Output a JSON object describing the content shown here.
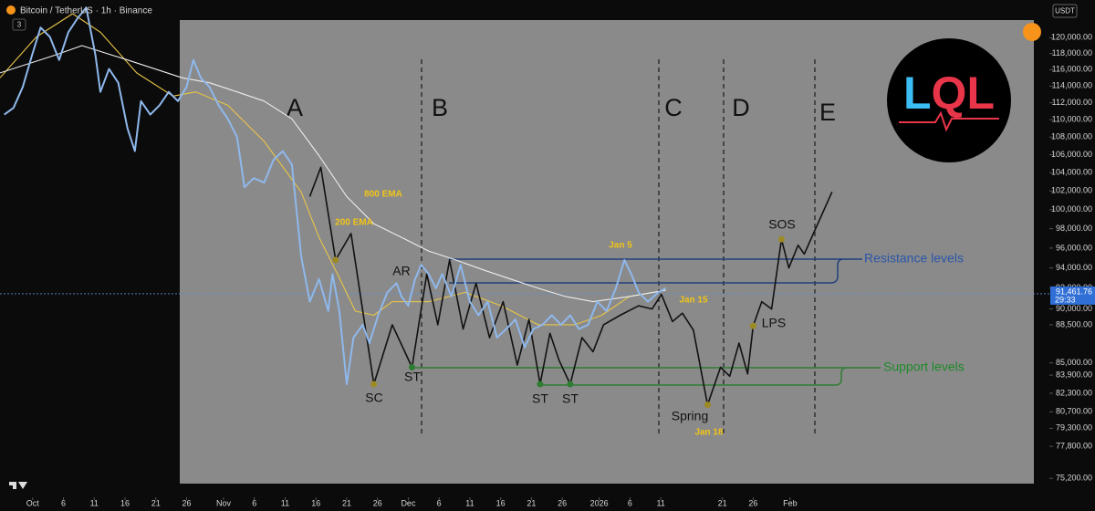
{
  "chart_data": {
    "type": "line",
    "title": "Bitcoin / TetherUS · 1h · Binance",
    "indicator_count": 3,
    "currency": "USDT",
    "log_scale": true,
    "grid": false,
    "xlim": [
      -5.3,
      165.1
    ],
    "ylim": [
      73700,
      124900
    ],
    "xticks": [
      {
        "value": 0,
        "label": "Oct"
      },
      {
        "value": 5,
        "label": "6"
      },
      {
        "value": 10,
        "label": "11"
      },
      {
        "value": 15,
        "label": "16"
      },
      {
        "value": 20,
        "label": "21"
      },
      {
        "value": 25,
        "label": "26"
      },
      {
        "value": 31,
        "label": "Nov"
      },
      {
        "value": 36,
        "label": "6"
      },
      {
        "value": 41,
        "label": "11"
      },
      {
        "value": 46,
        "label": "16"
      },
      {
        "value": 51,
        "label": "21"
      },
      {
        "value": 56,
        "label": "26"
      },
      {
        "value": 61,
        "label": "Dec"
      },
      {
        "value": 66,
        "label": "6"
      },
      {
        "value": 71,
        "label": "11"
      },
      {
        "value": 76,
        "label": "16"
      },
      {
        "value": 81,
        "label": "21"
      },
      {
        "value": 86,
        "label": "26"
      },
      {
        "value": 92,
        "label": "2026"
      },
      {
        "value": 97,
        "label": "6"
      },
      {
        "value": 102,
        "label": "11"
      },
      {
        "value": 112,
        "label": "21"
      },
      {
        "value": 117,
        "label": "26"
      },
      {
        "value": 123,
        "label": "Feb"
      }
    ],
    "yticks": [
      {
        "value": 120000,
        "label": "120,000.00"
      },
      {
        "value": 118000,
        "label": "118,000.00"
      },
      {
        "value": 116000,
        "label": "116,000.00"
      },
      {
        "value": 114000,
        "label": "114,000.00"
      },
      {
        "value": 112000,
        "label": "112,000.00"
      },
      {
        "value": 110000,
        "label": "110,000.00"
      },
      {
        "value": 108000,
        "label": "108,000.00"
      },
      {
        "value": 106000,
        "label": "106,000.00"
      },
      {
        "value": 104000,
        "label": "104,000.00"
      },
      {
        "value": 102000,
        "label": "102,000.00"
      },
      {
        "value": 100000,
        "label": "100,000.00"
      },
      {
        "value": 98000,
        "label": "98,000.00"
      },
      {
        "value": 96000,
        "label": "96,000.00"
      },
      {
        "value": 94000,
        "label": "94,000.00"
      },
      {
        "value": 92000,
        "label": "92,000.00"
      },
      {
        "value": 90000,
        "label": "90,000.00"
      },
      {
        "value": 88500,
        "label": "88,500.00"
      },
      {
        "value": 85000,
        "label": "85,000.00"
      },
      {
        "value": 83900,
        "label": "83,900.00"
      },
      {
        "value": 82300,
        "label": "82,300.00"
      },
      {
        "value": 80700,
        "label": "80,700.00"
      },
      {
        "value": 79300,
        "label": "79,300.00"
      },
      {
        "value": 77800,
        "label": "77,800.00"
      },
      {
        "value": 75200,
        "label": "75,200.00"
      }
    ],
    "series": [
      {
        "color": "#8fb8ec",
        "x": [
          -4.6,
          -3.1,
          -1.6,
          -0.1,
          1.3,
          2.8,
          4.3,
          5.8,
          7.3,
          8.7,
          10.2,
          11.0,
          12.4,
          13.9,
          15.4,
          16.6,
          17.6,
          19.1,
          20.6,
          22.1,
          23.6,
          25.0,
          26.1,
          27.3,
          28.7,
          30.2,
          31.7,
          33.2,
          34.4,
          35.9,
          37.6,
          39.1,
          40.6,
          42.1,
          43.6,
          45.0,
          46.5,
          48.0,
          48.7,
          49.8,
          51.0,
          52.1,
          53.6,
          54.7,
          56.1,
          57.6,
          59.1,
          59.9,
          61.0,
          62.1,
          63.1,
          64.3,
          65.5,
          66.5,
          68.0,
          69.5,
          71.0,
          72.4,
          73.9,
          75.4,
          76.9,
          78.4,
          79.9,
          81.3,
          82.8,
          84.3,
          85.8,
          87.3,
          88.7,
          90.2,
          91.7,
          93.2,
          94.7,
          96.1,
          97.2,
          98.4,
          99.9,
          101.6,
          102.8
        ],
        "values": [
          110600,
          111400,
          113900,
          117800,
          121300,
          120100,
          117200,
          120700,
          122500,
          123900,
          117800,
          113300,
          116100,
          114400,
          109000,
          106400,
          112200,
          110600,
          111700,
          113300,
          112200,
          113900,
          117200,
          115000,
          113900,
          111700,
          110100,
          108000,
          102400,
          103400,
          102900,
          105400,
          106400,
          104900,
          95200,
          90700,
          92900,
          89800,
          93400,
          89800,
          83100,
          87300,
          88500,
          86800,
          89400,
          91600,
          92500,
          91200,
          90300,
          92900,
          94300,
          93400,
          92000,
          93400,
          91200,
          94300,
          90700,
          89400,
          90700,
          87300,
          88100,
          89000,
          86400,
          88100,
          88500,
          89400,
          88500,
          89400,
          88100,
          88500,
          90700,
          89800,
          92000,
          94800,
          93400,
          91600,
          90700,
          91600,
          92000
        ]
      },
      {
        "name": "200 EMA",
        "color": "#e8c547",
        "x": [
          -5.3,
          0.6,
          6.5,
          11.0,
          16.9,
          22.8,
          26.5,
          31.7,
          37.6,
          43.6,
          46.5,
          49.5,
          52.4,
          55.4,
          58.4,
          64.3,
          70.2,
          76.1,
          82.1,
          88.0,
          92.4,
          96.9,
          102.8
        ],
        "values": [
          115000,
          120100,
          123100,
          120700,
          115600,
          112800,
          113300,
          111700,
          107500,
          101900,
          97100,
          93400,
          89800,
          89400,
          90700,
          90700,
          91600,
          90300,
          88500,
          88500,
          89400,
          91200,
          91800
        ]
      },
      {
        "name": "800 EMA",
        "color": "#ececec",
        "x": [
          -5.3,
          3.6,
          8.0,
          15.4,
          24.3,
          28.7,
          33.2,
          37.6,
          42.1,
          46.5,
          51.0,
          55.4,
          59.9,
          64.3,
          68.7,
          73.2,
          77.6,
          82.1,
          86.5,
          91.0,
          96.9,
          102.8
        ],
        "values": [
          115600,
          117800,
          119000,
          117200,
          115000,
          114400,
          113300,
          112200,
          110100,
          105900,
          101400,
          98500,
          97100,
          95700,
          94800,
          93800,
          92900,
          92000,
          91200,
          90700,
          91200,
          91800
        ]
      },
      {
        "color": "#111111",
        "x": [
          45.0,
          46.8,
          49.2,
          51.7,
          55.4,
          58.4,
          61.6,
          64.0,
          65.8,
          67.7,
          69.9,
          72.0,
          74.2,
          76.4,
          78.7,
          80.6,
          82.4,
          84.0,
          85.5,
          87.3,
          89.2,
          91.0,
          92.7,
          95.4,
          98.4,
          100.6,
          102.1,
          103.9,
          105.5,
          107.3,
          109.6,
          111.7,
          113.2,
          114.7,
          116.1,
          117.0,
          118.4,
          120.0,
          121.6,
          122.8,
          124.3,
          125.3,
          129.8
        ],
        "values": [
          101400,
          104600,
          94800,
          97500,
          83100,
          88500,
          84600,
          93400,
          88500,
          94800,
          88100,
          92500,
          87300,
          90700,
          84800,
          89000,
          83100,
          87700,
          85200,
          83100,
          87300,
          86000,
          88500,
          89400,
          90300,
          90000,
          91400,
          88800,
          89600,
          88000,
          81300,
          84600,
          83800,
          86800,
          84000,
          88400,
          90700,
          90000,
          96900,
          94000,
          96300,
          95400,
          101900
        ]
      }
    ],
    "last_price": {
      "value": 91461.76,
      "label": "91,461.76"
    },
    "countdown": "29:33",
    "phases": [
      "A",
      "B",
      "C",
      "D",
      "E"
    ],
    "annotations": [
      "SC",
      "AR",
      "ST",
      "ST",
      "ST",
      "Spring",
      "LPS",
      "SOS",
      "Jan 5",
      "Jan 15",
      "Jan 18"
    ],
    "level_labels": [
      "Resistance levels",
      "Support levels"
    ],
    "logo": [
      "L",
      "Q",
      "L"
    ]
  }
}
